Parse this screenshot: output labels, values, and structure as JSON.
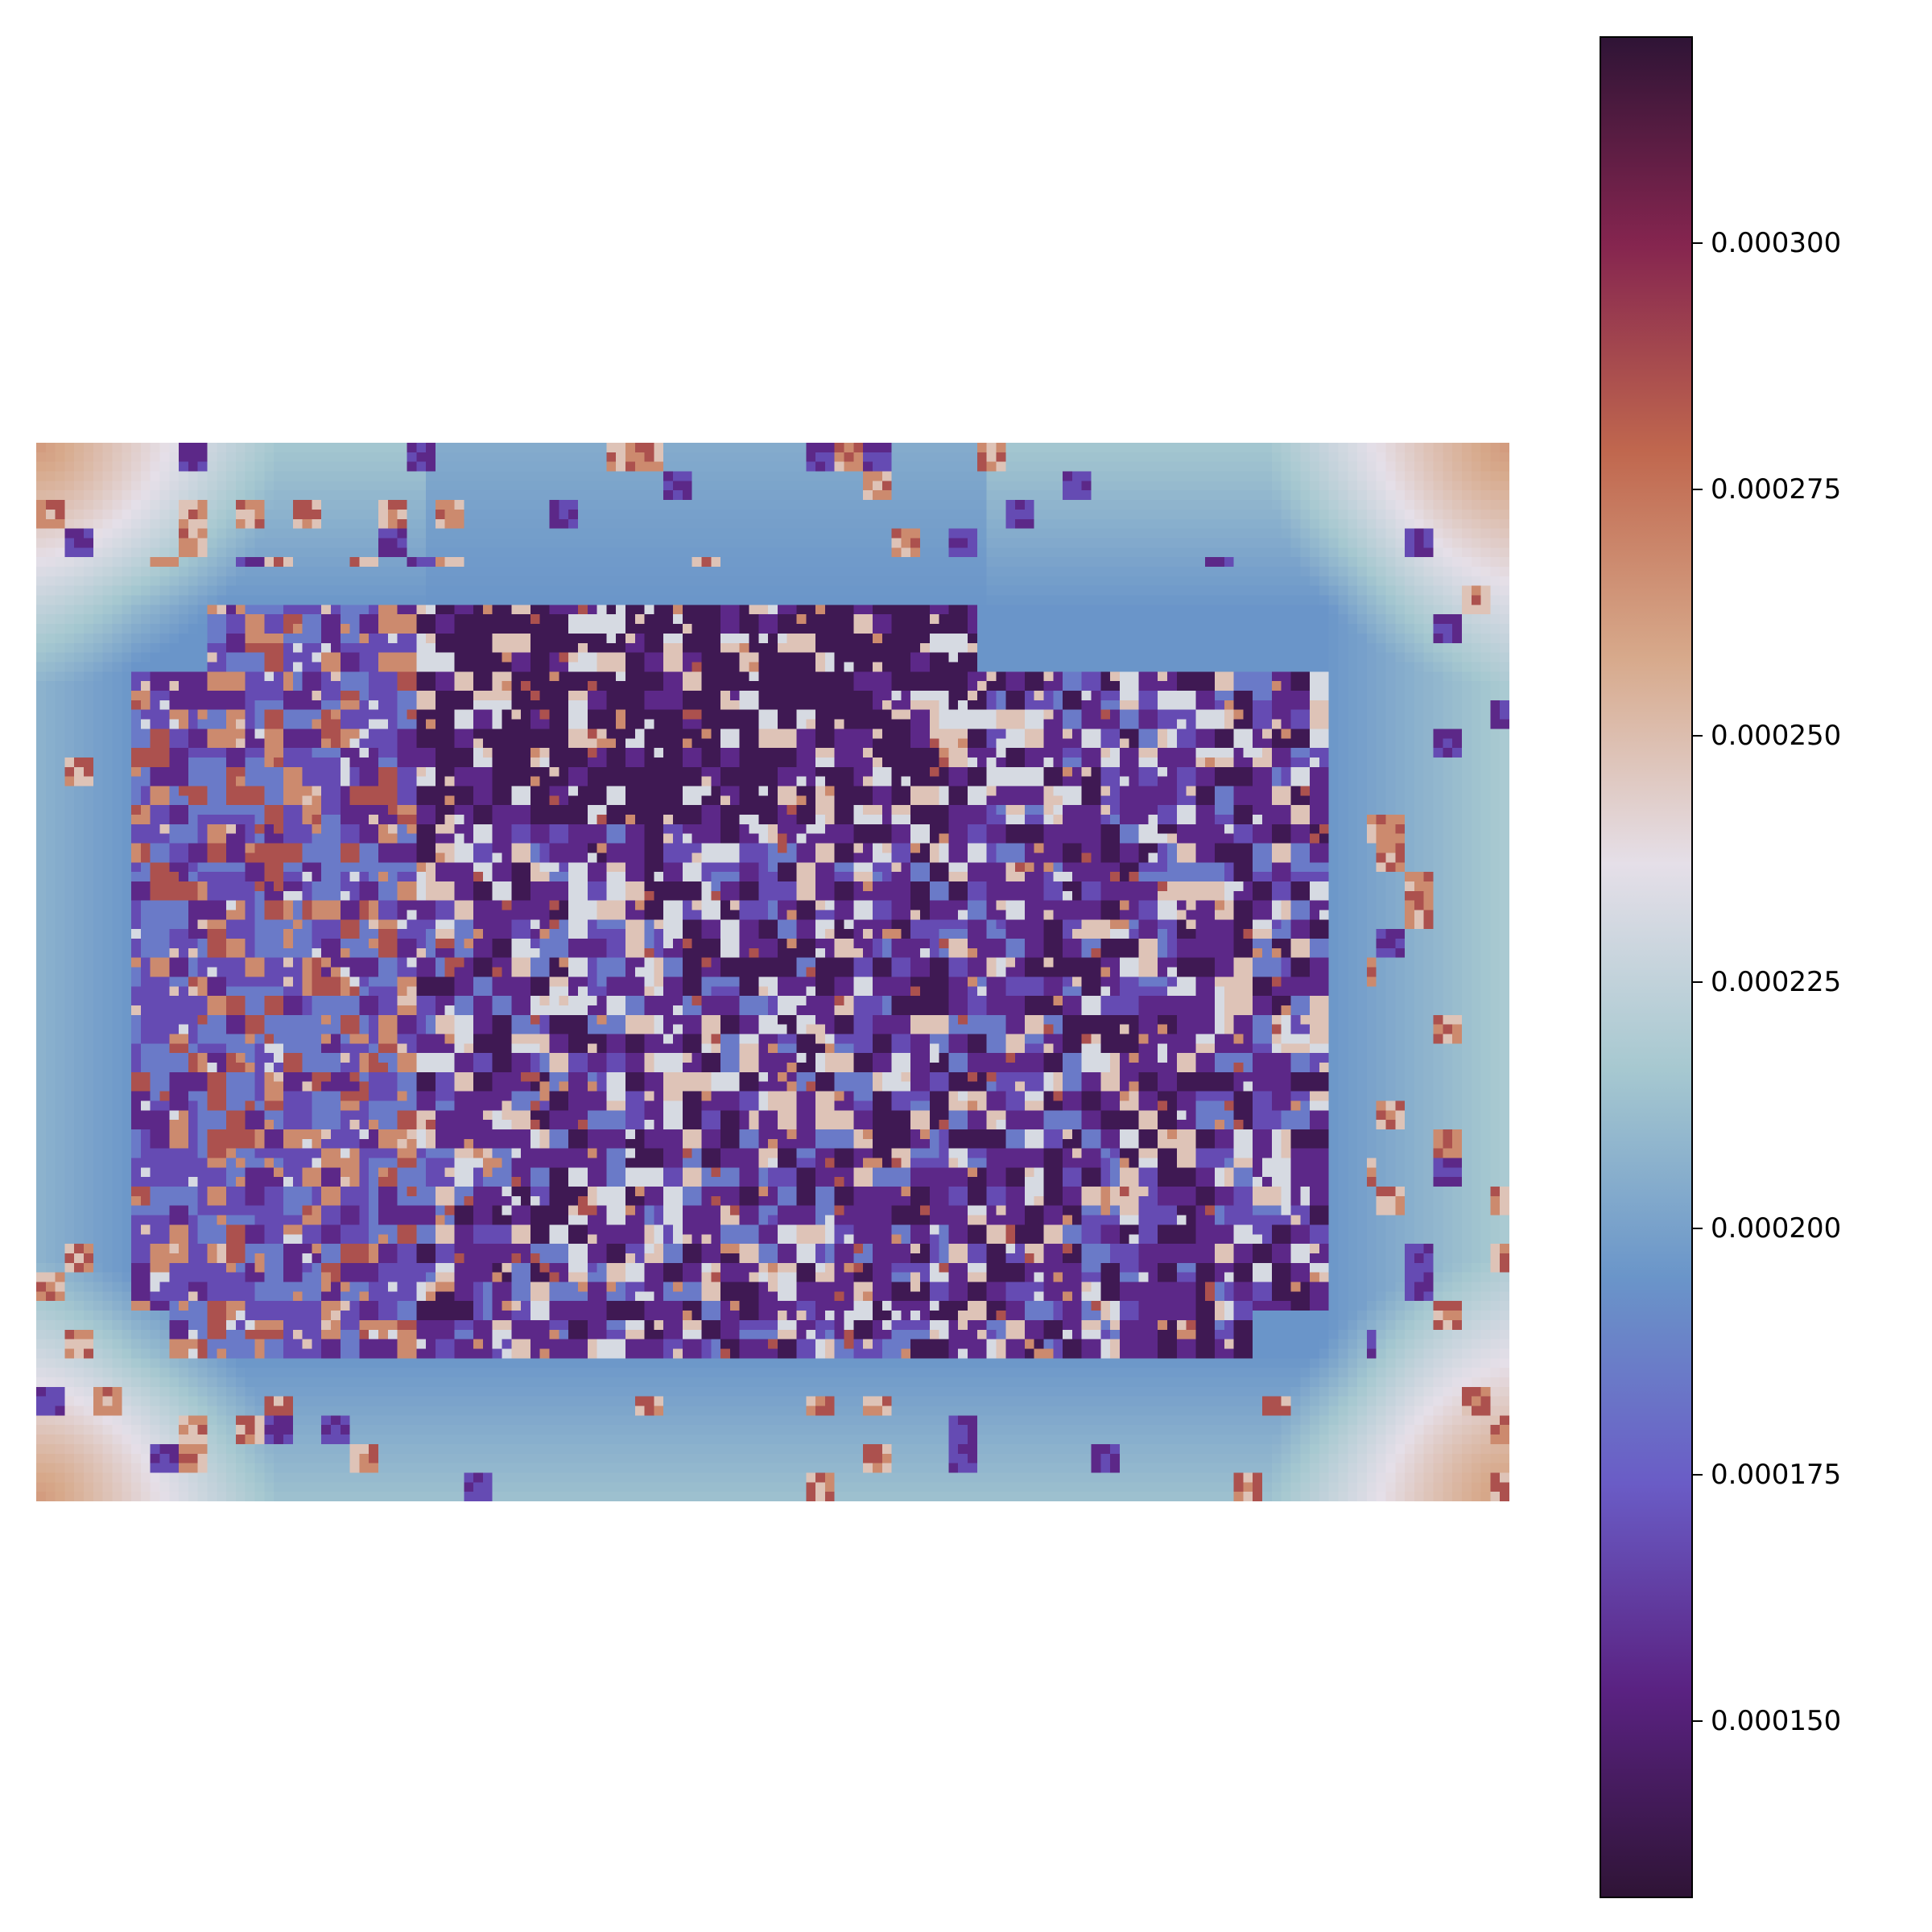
{
  "chart_data": {
    "type": "heatmap",
    "title": "",
    "xlabel": "",
    "ylabel": "",
    "axes_visible": false,
    "grid": false,
    "grid_size": {
      "cols": 155,
      "rows": 111
    },
    "colormap": "twilight_shifted",
    "colormap_stops": [
      "#2f1436",
      "#5a2282",
      "#6a5cc6",
      "#6a95c9",
      "#a6c8d0",
      "#e5dfe8",
      "#d7a98b",
      "#c0674e",
      "#85254f",
      "#2f1436"
    ],
    "value_range": [
      0.000132,
      0.000321
    ],
    "colorbar": {
      "ticks": [
        0.00015,
        0.000175,
        0.0002,
        0.000225,
        0.00025,
        0.000275,
        0.0003
      ],
      "tick_labels": [
        "0.000150",
        "0.000175",
        "0.000200",
        "0.000225",
        "0.000250",
        "0.000275",
        "0.000300"
      ]
    },
    "description_regions": {
      "background_border": 0.000228,
      "corner_regions": 0.000262,
      "band_around_core": 0.000195,
      "top_band": 0.000168,
      "core_mixture": [
        0.00014,
        0.000155,
        0.000168,
        0.000185,
        0.000232,
        0.000248,
        0.000268,
        0.000286
      ]
    }
  }
}
